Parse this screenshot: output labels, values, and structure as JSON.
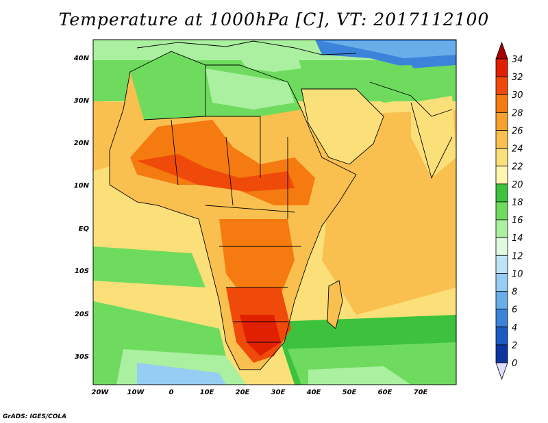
{
  "title": "Temperature at 1000hPa [C], VT: 2017112100",
  "credit": "GrADS: IGES/COLA",
  "map": {
    "lon_ticks": [
      "20W",
      "10W",
      "0",
      "10E",
      "20E",
      "30E",
      "40E",
      "50E",
      "60E",
      "70E"
    ],
    "lat_ticks": [
      "40N",
      "30N",
      "20N",
      "10N",
      "EQ",
      "10S",
      "20S",
      "30S"
    ]
  },
  "colorbar": {
    "labels": [
      "34",
      "32",
      "30",
      "28",
      "26",
      "24",
      "22",
      "20",
      "18",
      "16",
      "14",
      "12",
      "10",
      "8",
      "6",
      "4",
      "2",
      "0"
    ],
    "colors": [
      "#a50000",
      "#e02000",
      "#f04a0a",
      "#f57a10",
      "#f7a030",
      "#f9c050",
      "#fbe07a",
      "#fff6b0",
      "#3cc23c",
      "#6edb5e",
      "#aaf0a0",
      "#dffae0",
      "#bde3f7",
      "#96cdf2",
      "#6aaee9",
      "#3c84da",
      "#1a5cc4",
      "#0c35a0",
      "#081a70",
      "#ddddff"
    ]
  }
}
